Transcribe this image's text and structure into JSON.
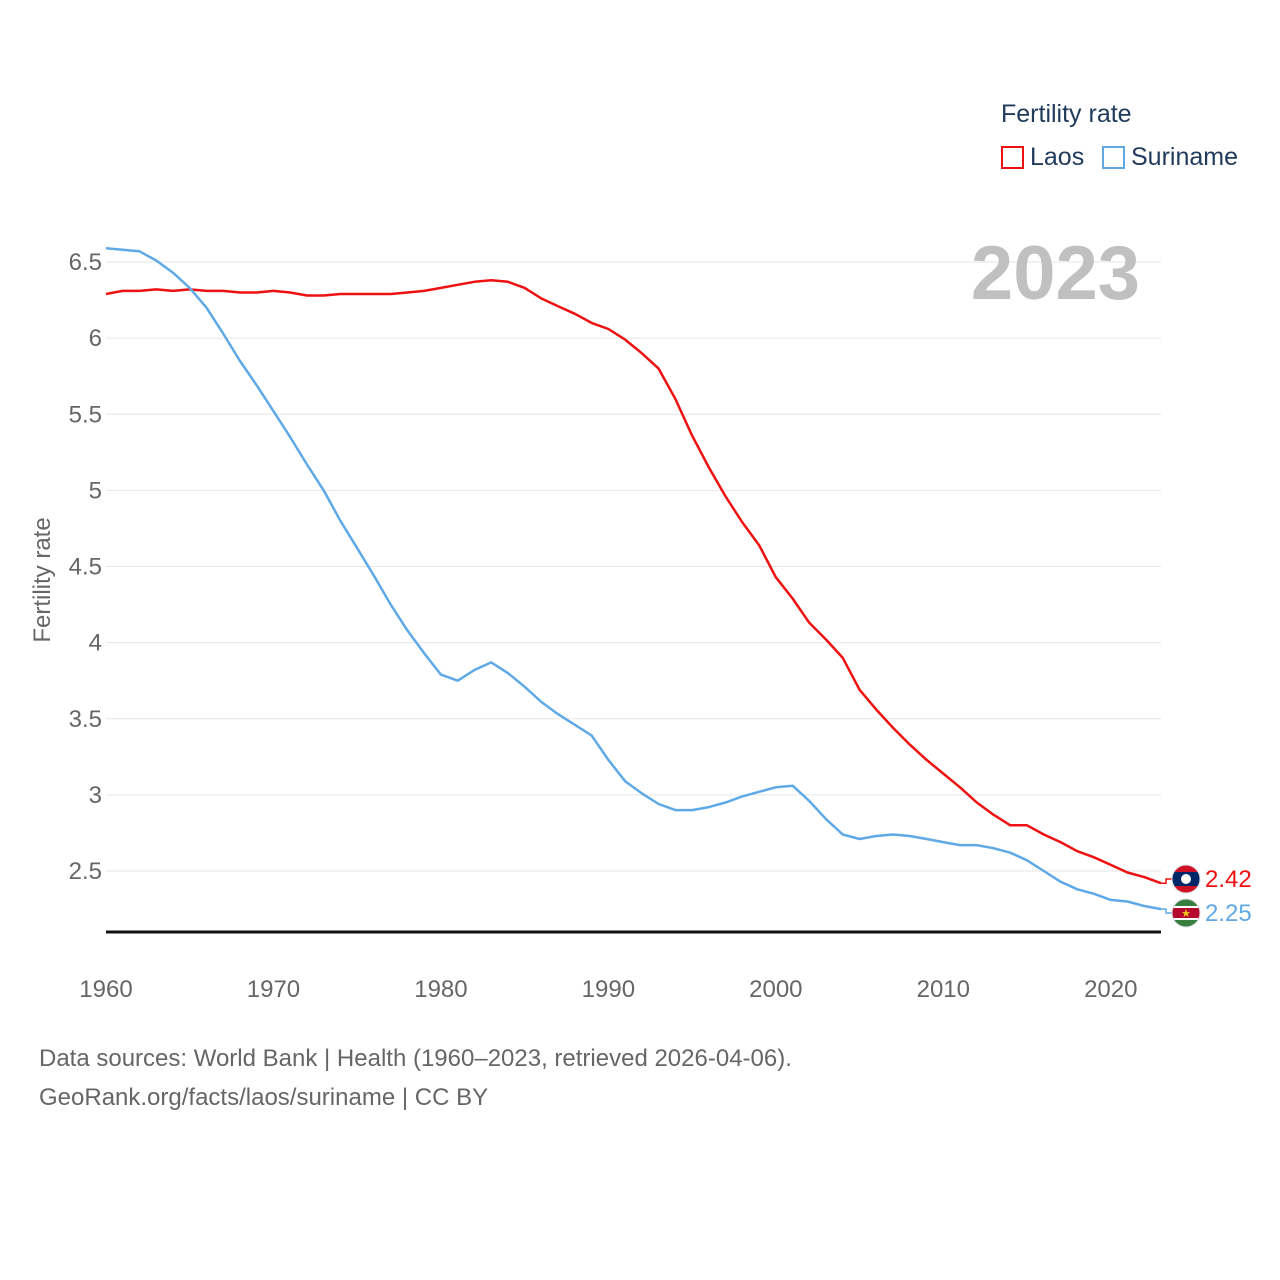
{
  "legend": {
    "title": "Fertility rate",
    "items": [
      {
        "label": "Laos",
        "color": "#ee1111"
      },
      {
        "label": "Suriname",
        "color": "#5ea9e6"
      }
    ]
  },
  "year_label": "2023",
  "source": {
    "line1": "Data sources: World Bank | Health (1960–2023, retrieved 2026-04-06).",
    "line2": "GeoRank.org/facts/laos/suriname | CC BY"
  },
  "chart_data": {
    "type": "line",
    "title": "",
    "xlabel": "",
    "ylabel": "Fertility rate",
    "xlim": [
      1960,
      2023
    ],
    "ylim": [
      2.1,
      6.6
    ],
    "x_ticks": [
      1960,
      1970,
      1980,
      1990,
      2000,
      2010,
      2020
    ],
    "y_ticks": [
      2.5,
      3,
      3.5,
      4,
      4.5,
      5,
      5.5,
      6,
      6.5
    ],
    "y_tick_labels": [
      "2.5",
      "3",
      "3.5",
      "4",
      "4.5",
      "5",
      "5.5",
      "6",
      "6.5"
    ],
    "years": [
      1960,
      1961,
      1962,
      1963,
      1964,
      1965,
      1966,
      1967,
      1968,
      1969,
      1970,
      1971,
      1972,
      1973,
      1974,
      1975,
      1976,
      1977,
      1978,
      1979,
      1980,
      1981,
      1982,
      1983,
      1984,
      1985,
      1986,
      1987,
      1988,
      1989,
      1990,
      1991,
      1992,
      1993,
      1994,
      1995,
      1996,
      1997,
      1998,
      1999,
      2000,
      2001,
      2002,
      2003,
      2004,
      2005,
      2006,
      2007,
      2008,
      2009,
      2010,
      2011,
      2012,
      2013,
      2014,
      2015,
      2016,
      2017,
      2018,
      2019,
      2020,
      2021,
      2022,
      2023
    ],
    "series": [
      {
        "name": "Laos",
        "color": "#ee1111",
        "end_label": "2.42",
        "values": [
          6.29,
          6.31,
          6.31,
          6.32,
          6.31,
          6.32,
          6.31,
          6.31,
          6.3,
          6.3,
          6.31,
          6.3,
          6.28,
          6.28,
          6.29,
          6.29,
          6.29,
          6.29,
          6.3,
          6.31,
          6.33,
          6.35,
          6.37,
          6.38,
          6.37,
          6.33,
          6.26,
          6.21,
          6.16,
          6.1,
          6.06,
          5.99,
          5.9,
          5.8,
          5.6,
          5.36,
          5.15,
          4.96,
          4.79,
          4.64,
          4.43,
          4.29,
          4.13,
          4.02,
          3.9,
          3.69,
          3.56,
          3.44,
          3.33,
          3.23,
          3.14,
          3.05,
          2.95,
          2.87,
          2.8,
          2.8,
          2.74,
          2.69,
          2.63,
          2.59,
          2.54,
          2.49,
          2.46,
          2.42
        ]
      },
      {
        "name": "Suriname",
        "color": "#5ea9e6",
        "end_label": "2.25",
        "values": [
          6.59,
          6.58,
          6.57,
          6.51,
          6.43,
          6.33,
          6.2,
          6.03,
          5.85,
          5.69,
          5.52,
          5.35,
          5.17,
          5.0,
          4.8,
          4.62,
          4.44,
          4.25,
          4.08,
          3.93,
          3.79,
          3.75,
          3.82,
          3.87,
          3.8,
          3.71,
          3.61,
          3.53,
          3.46,
          3.39,
          3.23,
          3.09,
          3.01,
          2.94,
          2.9,
          2.9,
          2.92,
          2.95,
          2.99,
          3.02,
          3.05,
          3.06,
          2.96,
          2.84,
          2.74,
          2.71,
          2.73,
          2.74,
          2.73,
          2.71,
          2.69,
          2.67,
          2.67,
          2.65,
          2.62,
          2.57,
          2.5,
          2.43,
          2.38,
          2.35,
          2.31,
          2.3,
          2.27,
          2.25
        ]
      }
    ]
  }
}
